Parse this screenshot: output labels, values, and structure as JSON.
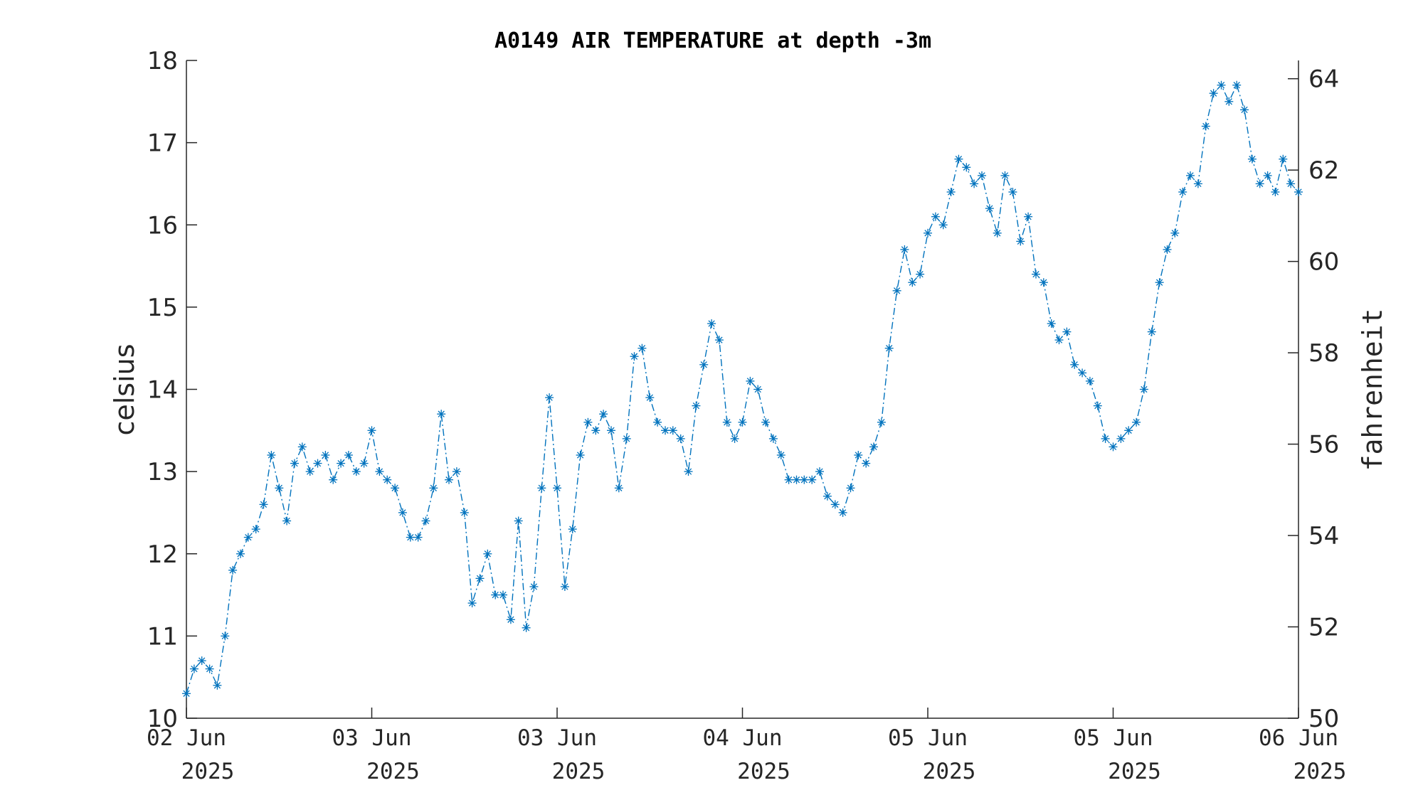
{
  "chart_data": {
    "type": "line",
    "title": "A0149 AIR TEMPERATURE at depth -3m",
    "ylabel": "celsius",
    "ylabel_right": "fahrenheit",
    "ylim": [
      10,
      18
    ],
    "ylim_right": [
      50,
      64.4
    ],
    "yticks": [
      10,
      11,
      12,
      13,
      14,
      15,
      16,
      17,
      18
    ],
    "yticks_right": [
      50,
      52,
      54,
      56,
      58,
      60,
      62,
      64
    ],
    "xlim": [
      "2025-06-02 00:00",
      "2025-06-06 00:00"
    ],
    "xticks": [
      {
        "date": "2025-06-02 00:00",
        "line1": "02 Jun",
        "line2": "2025"
      },
      {
        "date": "2025-06-02 16:00",
        "line1": "03 Jun",
        "line2": "2025"
      },
      {
        "date": "2025-06-03 08:00",
        "line1": "03 Jun",
        "line2": "2025"
      },
      {
        "date": "2025-06-04 00:00",
        "line1": "04 Jun",
        "line2": "2025"
      },
      {
        "date": "2025-06-04 16:00",
        "line1": "05 Jun",
        "line2": "2025"
      },
      {
        "date": "2025-06-05 08:00",
        "line1": "05 Jun",
        "line2": "2025"
      },
      {
        "date": "2025-06-06 00:00",
        "line1": "06 Jun",
        "line2": "2025"
      }
    ],
    "grid": false,
    "series": [
      {
        "color": "#0072BD",
        "marker": "asterisk",
        "line_style": "dash-dot",
        "points": [
          [
            "2025-06-02 00:00",
            10.3
          ],
          [
            "2025-06-02 00:40",
            10.6
          ],
          [
            "2025-06-02 01:20",
            10.7
          ],
          [
            "2025-06-02 02:00",
            10.6
          ],
          [
            "2025-06-02 02:40",
            10.4
          ],
          [
            "2025-06-02 03:20",
            11.0
          ],
          [
            "2025-06-02 04:00",
            11.8
          ],
          [
            "2025-06-02 04:40",
            12.0
          ],
          [
            "2025-06-02 05:20",
            12.2
          ],
          [
            "2025-06-02 06:00",
            12.3
          ],
          [
            "2025-06-02 06:40",
            12.6
          ],
          [
            "2025-06-02 07:20",
            13.2
          ],
          [
            "2025-06-02 08:00",
            12.8
          ],
          [
            "2025-06-02 08:40",
            12.4
          ],
          [
            "2025-06-02 09:20",
            13.1
          ],
          [
            "2025-06-02 10:00",
            13.3
          ],
          [
            "2025-06-02 10:40",
            13.0
          ],
          [
            "2025-06-02 11:20",
            13.1
          ],
          [
            "2025-06-02 12:00",
            13.2
          ],
          [
            "2025-06-02 12:40",
            12.9
          ],
          [
            "2025-06-02 13:20",
            13.1
          ],
          [
            "2025-06-02 14:00",
            13.2
          ],
          [
            "2025-06-02 14:40",
            13.0
          ],
          [
            "2025-06-02 15:20",
            13.1
          ],
          [
            "2025-06-02 16:00",
            13.5
          ],
          [
            "2025-06-02 16:40",
            13.0
          ],
          [
            "2025-06-02 17:20",
            12.9
          ],
          [
            "2025-06-02 18:00",
            12.8
          ],
          [
            "2025-06-02 18:40",
            12.5
          ],
          [
            "2025-06-02 19:20",
            12.2
          ],
          [
            "2025-06-02 20:00",
            12.2
          ],
          [
            "2025-06-02 20:40",
            12.4
          ],
          [
            "2025-06-02 21:20",
            12.8
          ],
          [
            "2025-06-02 22:00",
            13.7
          ],
          [
            "2025-06-02 22:40",
            12.9
          ],
          [
            "2025-06-02 23:20",
            13.0
          ],
          [
            "2025-06-03 00:00",
            12.5
          ],
          [
            "2025-06-03 00:40",
            11.4
          ],
          [
            "2025-06-03 01:20",
            11.7
          ],
          [
            "2025-06-03 02:00",
            12.0
          ],
          [
            "2025-06-03 02:40",
            11.5
          ],
          [
            "2025-06-03 03:20",
            11.5
          ],
          [
            "2025-06-03 04:00",
            11.2
          ],
          [
            "2025-06-03 04:40",
            12.4
          ],
          [
            "2025-06-03 05:20",
            11.1
          ],
          [
            "2025-06-03 06:00",
            11.6
          ],
          [
            "2025-06-03 06:40",
            12.8
          ],
          [
            "2025-06-03 07:20",
            13.9
          ],
          [
            "2025-06-03 08:00",
            12.8
          ],
          [
            "2025-06-03 08:40",
            11.6
          ],
          [
            "2025-06-03 09:20",
            12.3
          ],
          [
            "2025-06-03 10:00",
            13.2
          ],
          [
            "2025-06-03 10:40",
            13.6
          ],
          [
            "2025-06-03 11:20",
            13.5
          ],
          [
            "2025-06-03 12:00",
            13.7
          ],
          [
            "2025-06-03 12:40",
            13.5
          ],
          [
            "2025-06-03 13:20",
            12.8
          ],
          [
            "2025-06-03 14:00",
            13.4
          ],
          [
            "2025-06-03 14:40",
            14.4
          ],
          [
            "2025-06-03 15:20",
            14.5
          ],
          [
            "2025-06-03 16:00",
            13.9
          ],
          [
            "2025-06-03 16:40",
            13.6
          ],
          [
            "2025-06-03 17:20",
            13.5
          ],
          [
            "2025-06-03 18:00",
            13.5
          ],
          [
            "2025-06-03 18:40",
            13.4
          ],
          [
            "2025-06-03 19:20",
            13.0
          ],
          [
            "2025-06-03 20:00",
            13.8
          ],
          [
            "2025-06-03 20:40",
            14.3
          ],
          [
            "2025-06-03 21:20",
            14.8
          ],
          [
            "2025-06-03 22:00",
            14.6
          ],
          [
            "2025-06-03 22:40",
            13.6
          ],
          [
            "2025-06-03 23:20",
            13.4
          ],
          [
            "2025-06-04 00:00",
            13.6
          ],
          [
            "2025-06-04 00:40",
            14.1
          ],
          [
            "2025-06-04 01:20",
            14.0
          ],
          [
            "2025-06-04 02:00",
            13.6
          ],
          [
            "2025-06-04 02:40",
            13.4
          ],
          [
            "2025-06-04 03:20",
            13.2
          ],
          [
            "2025-06-04 04:00",
            12.9
          ],
          [
            "2025-06-04 04:40",
            12.9
          ],
          [
            "2025-06-04 05:20",
            12.9
          ],
          [
            "2025-06-04 06:00",
            12.9
          ],
          [
            "2025-06-04 06:40",
            13.0
          ],
          [
            "2025-06-04 07:20",
            12.7
          ],
          [
            "2025-06-04 08:00",
            12.6
          ],
          [
            "2025-06-04 08:40",
            12.5
          ],
          [
            "2025-06-04 09:20",
            12.8
          ],
          [
            "2025-06-04 10:00",
            13.2
          ],
          [
            "2025-06-04 10:40",
            13.1
          ],
          [
            "2025-06-04 11:20",
            13.3
          ],
          [
            "2025-06-04 12:00",
            13.6
          ],
          [
            "2025-06-04 12:40",
            14.5
          ],
          [
            "2025-06-04 13:20",
            15.2
          ],
          [
            "2025-06-04 14:00",
            15.7
          ],
          [
            "2025-06-04 14:40",
            15.3
          ],
          [
            "2025-06-04 15:20",
            15.4
          ],
          [
            "2025-06-04 16:00",
            15.9
          ],
          [
            "2025-06-04 16:40",
            16.1
          ],
          [
            "2025-06-04 17:20",
            16.0
          ],
          [
            "2025-06-04 18:00",
            16.4
          ],
          [
            "2025-06-04 18:40",
            16.8
          ],
          [
            "2025-06-04 19:20",
            16.7
          ],
          [
            "2025-06-04 20:00",
            16.5
          ],
          [
            "2025-06-04 20:40",
            16.6
          ],
          [
            "2025-06-04 21:20",
            16.2
          ],
          [
            "2025-06-04 22:00",
            15.9
          ],
          [
            "2025-06-04 22:40",
            16.6
          ],
          [
            "2025-06-04 23:20",
            16.4
          ],
          [
            "2025-06-05 00:00",
            15.8
          ],
          [
            "2025-06-05 00:40",
            16.1
          ],
          [
            "2025-06-05 01:20",
            15.4
          ],
          [
            "2025-06-05 02:00",
            15.3
          ],
          [
            "2025-06-05 02:40",
            14.8
          ],
          [
            "2025-06-05 03:20",
            14.6
          ],
          [
            "2025-06-05 04:00",
            14.7
          ],
          [
            "2025-06-05 04:40",
            14.3
          ],
          [
            "2025-06-05 05:20",
            14.2
          ],
          [
            "2025-06-05 06:00",
            14.1
          ],
          [
            "2025-06-05 06:40",
            13.8
          ],
          [
            "2025-06-05 07:20",
            13.4
          ],
          [
            "2025-06-05 08:00",
            13.3
          ],
          [
            "2025-06-05 08:40",
            13.4
          ],
          [
            "2025-06-05 09:20",
            13.5
          ],
          [
            "2025-06-05 10:00",
            13.6
          ],
          [
            "2025-06-05 10:40",
            14.0
          ],
          [
            "2025-06-05 11:20",
            14.7
          ],
          [
            "2025-06-05 12:00",
            15.3
          ],
          [
            "2025-06-05 12:40",
            15.7
          ],
          [
            "2025-06-05 13:20",
            15.9
          ],
          [
            "2025-06-05 14:00",
            16.4
          ],
          [
            "2025-06-05 14:40",
            16.6
          ],
          [
            "2025-06-05 15:20",
            16.5
          ],
          [
            "2025-06-05 16:00",
            17.2
          ],
          [
            "2025-06-05 16:40",
            17.6
          ],
          [
            "2025-06-05 17:20",
            17.7
          ],
          [
            "2025-06-05 18:00",
            17.5
          ],
          [
            "2025-06-05 18:40",
            17.7
          ],
          [
            "2025-06-05 19:20",
            17.4
          ],
          [
            "2025-06-05 20:00",
            16.8
          ],
          [
            "2025-06-05 20:40",
            16.5
          ],
          [
            "2025-06-05 21:20",
            16.6
          ],
          [
            "2025-06-05 22:00",
            16.4
          ],
          [
            "2025-06-05 22:40",
            16.8
          ],
          [
            "2025-06-05 23:20",
            16.5
          ],
          [
            "2025-06-06 00:00",
            16.4
          ]
        ]
      }
    ]
  }
}
